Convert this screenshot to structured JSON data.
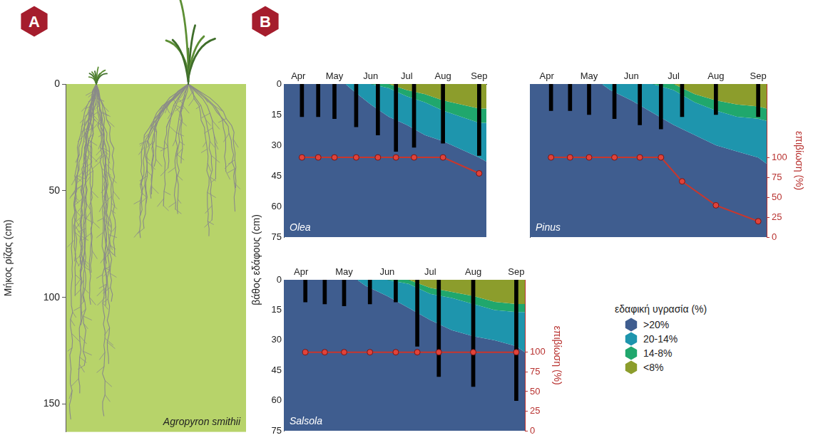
{
  "panel_labels": [
    "A",
    "B"
  ],
  "legend_title": "εδαφική υγρασία (%)",
  "chart_data": [
    {
      "type": "diagram",
      "title": "Agropyron smithii",
      "ylabel": "Μήκος ρίζας (cm)",
      "ylim": [
        0,
        163
      ],
      "yticks": [
        0,
        50,
        100,
        150
      ],
      "values": [
        157,
        72
      ],
      "grid": false
    },
    {
      "type": "area",
      "title": "Olea",
      "stacked": true,
      "grid": false,
      "x": [
        3.6,
        5.3,
        5.5,
        6.0,
        6.5,
        7.0,
        7.5,
        8.0,
        8.5,
        9.0,
        9.2
      ],
      "xlim": [
        3.6,
        9.2
      ],
      "xticks": [
        {
          "value": 4,
          "label": "Apr"
        },
        {
          "value": 5,
          "label": "May"
        },
        {
          "value": 6,
          "label": "Jun"
        },
        {
          "value": 7,
          "label": "Jul"
        },
        {
          "value": 8,
          "label": "Aug"
        },
        {
          "value": 9,
          "label": "Sep"
        }
      ],
      "ylim": [
        0,
        75
      ],
      "yticks": [
        0,
        15,
        30,
        45,
        60,
        75
      ],
      "y2lim": [
        0,
        192
      ],
      "series": [
        {
          "name": ">20%",
          "color": "#3f5d8f",
          "values": [
            75,
            75,
            72,
            65,
            59,
            55,
            50,
            47,
            43,
            39,
            37
          ]
        },
        {
          "name": "20-14%",
          "color": "#1e95ad",
          "values": [
            0,
            0,
            3,
            10,
            14,
            14,
            16,
            15,
            16,
            17,
            19
          ]
        },
        {
          "name": "14-8%",
          "color": "#20a76d",
          "values": [
            0,
            0,
            0,
            0,
            2,
            3,
            4,
            5,
            6,
            7,
            7
          ]
        },
        {
          "name": "<8%",
          "color": "#8c9d2c",
          "values": [
            0,
            0,
            0,
            0,
            0,
            3,
            5,
            8,
            10,
            12,
            12
          ]
        }
      ],
      "root_depth": {
        "type": "bar",
        "color": "#000000",
        "x": [
          4.1,
          4.55,
          5.0,
          5.6,
          6.2,
          6.7,
          7.2,
          8.0,
          9.0
        ],
        "values": [
          16,
          16,
          17,
          21,
          25,
          33,
          31,
          29,
          35
        ]
      },
      "survival": {
        "type": "line",
        "color": "#c8372d",
        "marker": "circle",
        "axis": "y2",
        "x": [
          4.1,
          4.55,
          5.0,
          5.6,
          6.2,
          6.7,
          7.2,
          8.0,
          9.0
        ],
        "values": [
          100,
          100,
          100,
          100,
          100,
          100,
          100,
          100,
          80
        ]
      }
    },
    {
      "type": "area",
      "title": "Pinus",
      "stacked": true,
      "grid": false,
      "x": [
        3.6,
        5.3,
        5.5,
        6.0,
        6.5,
        7.0,
        7.5,
        8.0,
        8.5,
        9.0,
        9.2
      ],
      "xlim": [
        3.6,
        9.2
      ],
      "xticks": [
        {
          "value": 4,
          "label": "Apr"
        },
        {
          "value": 5,
          "label": "May"
        },
        {
          "value": 6,
          "label": "Jun"
        },
        {
          "value": 7,
          "label": "Jul"
        },
        {
          "value": 8,
          "label": "Aug"
        },
        {
          "value": 9,
          "label": "Sep"
        }
      ],
      "ylim": [
        0,
        75
      ],
      "y2lim": [
        0,
        192
      ],
      "y2ticks": [
        0,
        25,
        50,
        75,
        100
      ],
      "y2label": "επιβίωση (%)",
      "series": [
        {
          "name": ">20%",
          "color": "#3f5d8f",
          "values": [
            75,
            75,
            72,
            67,
            61,
            55,
            50,
            45,
            42,
            39,
            36
          ]
        },
        {
          "name": "20-14%",
          "color": "#1e95ad",
          "values": [
            0,
            0,
            3,
            8,
            14,
            17,
            16,
            17,
            17,
            19,
            21
          ]
        },
        {
          "name": "14-8%",
          "color": "#20a76d",
          "values": [
            0,
            0,
            0,
            0,
            0,
            3,
            4,
            5,
            6,
            6,
            6
          ]
        },
        {
          "name": "<8%",
          "color": "#8c9d2c",
          "values": [
            0,
            0,
            0,
            0,
            0,
            0,
            5,
            8,
            10,
            11,
            12
          ]
        }
      ],
      "root_depth": {
        "type": "bar",
        "color": "#000000",
        "x": [
          4.1,
          4.55,
          5.0,
          5.6,
          6.2,
          6.7,
          7.2,
          8.0,
          9.0
        ],
        "values": [
          13,
          13,
          15,
          17,
          20,
          22,
          16,
          15,
          16
        ]
      },
      "survival": {
        "type": "line",
        "color": "#c8372d",
        "marker": "circle",
        "axis": "y2",
        "x": [
          4.1,
          4.55,
          5.0,
          5.6,
          6.2,
          6.7,
          7.2,
          8.0,
          9.0
        ],
        "values": [
          100,
          100,
          100,
          100,
          100,
          100,
          70,
          40,
          20
        ]
      }
    },
    {
      "type": "area",
      "title": "Salsola",
      "stacked": true,
      "grid": false,
      "x": [
        3.6,
        5.3,
        5.5,
        6.0,
        6.5,
        7.0,
        7.5,
        8.0,
        8.5,
        9.0,
        9.2
      ],
      "xlim": [
        3.6,
        9.2
      ],
      "xticks": [
        {
          "value": 4,
          "label": "Apr"
        },
        {
          "value": 5,
          "label": "May"
        },
        {
          "value": 6,
          "label": "Jun"
        },
        {
          "value": 7,
          "label": "Jul"
        },
        {
          "value": 8,
          "label": "Aug"
        },
        {
          "value": 9,
          "label": "Sep"
        }
      ],
      "ylim": [
        0,
        75
      ],
      "yticks": [
        0,
        15,
        30,
        45,
        60,
        75
      ],
      "ylabel": "βάθος εδάφους (cm)",
      "y2lim": [
        0,
        192
      ],
      "y2ticks": [
        0,
        25,
        50,
        75,
        100
      ],
      "y2label": "επιβίωση (%)",
      "series": [
        {
          "name": ">20%",
          "color": "#3f5d8f",
          "values": [
            75,
            75,
            72,
            67,
            61,
            55,
            50,
            47,
            45,
            42,
            39
          ]
        },
        {
          "name": "20-14%",
          "color": "#1e95ad",
          "values": [
            0,
            0,
            3,
            8,
            12,
            13,
            16,
            16,
            15,
            17,
            20
          ]
        },
        {
          "name": "14-8%",
          "color": "#20a76d",
          "values": [
            0,
            0,
            0,
            0,
            2,
            3,
            3,
            4,
            4,
            4,
            4
          ]
        },
        {
          "name": "<8%",
          "color": "#8c9d2c",
          "values": [
            0,
            0,
            0,
            0,
            0,
            4,
            6,
            8,
            11,
            12,
            12
          ]
        }
      ],
      "root_depth": {
        "type": "bar",
        "color": "#000000",
        "x": [
          4.1,
          4.55,
          5.0,
          5.6,
          6.2,
          6.7,
          7.2,
          8.0,
          9.0
        ],
        "values": [
          11,
          12,
          13,
          12,
          11,
          33,
          48,
          53,
          60
        ]
      },
      "survival": {
        "type": "line",
        "color": "#c8372d",
        "marker": "circle",
        "axis": "y2",
        "x": [
          4.1,
          4.55,
          5.0,
          5.6,
          6.2,
          6.7,
          7.2,
          8.0,
          9.0
        ],
        "values": [
          100,
          100,
          100,
          100,
          100,
          100,
          100,
          100,
          100
        ]
      }
    }
  ]
}
